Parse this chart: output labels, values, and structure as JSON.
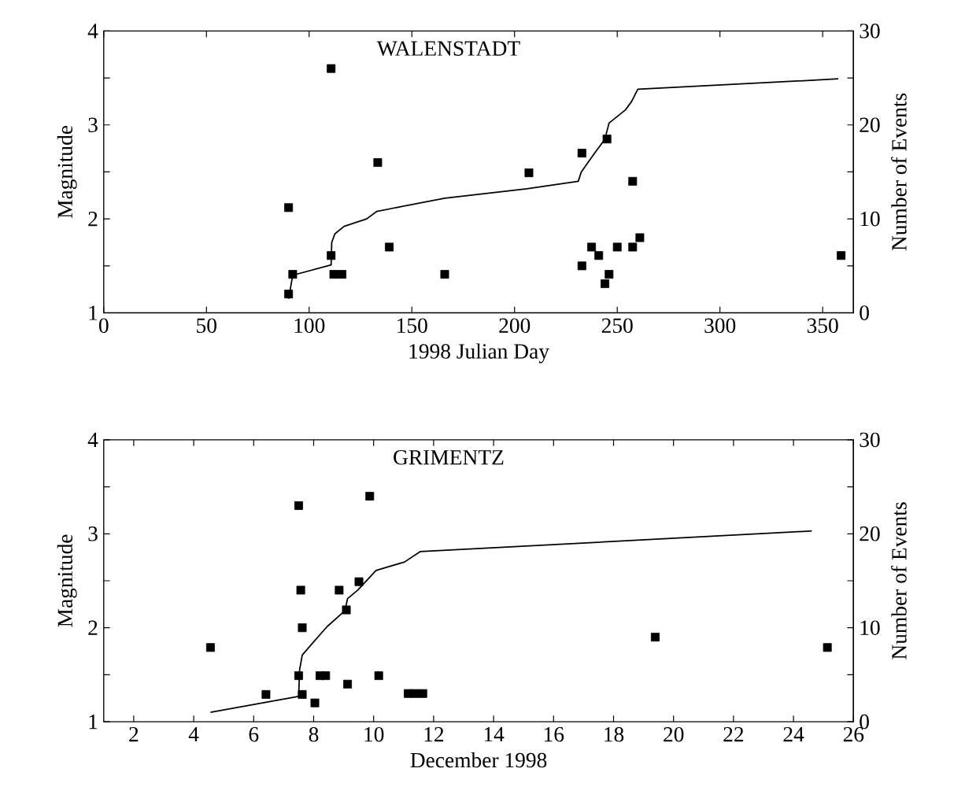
{
  "chart_data": [
    {
      "type": "scatter",
      "title": "WALENSTADT",
      "xlabel": "1998 Julian Day",
      "ylabel": "Magnitude",
      "y2label": "Number of Events",
      "marker": "square",
      "xlim": [
        0,
        365
      ],
      "xticks": [
        0,
        50,
        100,
        150,
        200,
        250,
        300,
        350
      ],
      "ylim": [
        1,
        4
      ],
      "yticks": [
        1,
        {
          "value": 1.5,
          "label": null
        },
        2,
        {
          "value": 2.5,
          "label": null
        },
        3,
        {
          "value": 3.5,
          "label": null
        },
        4
      ],
      "y2lim": [
        0,
        30
      ],
      "y2ticks": [
        0,
        {
          "value": 5,
          "label": null
        },
        10,
        {
          "value": 15,
          "label": null
        },
        20,
        {
          "value": 25,
          "label": null
        },
        30
      ],
      "series": [
        {
          "color": "#000000",
          "x": [
            90,
            92,
            90,
            110.7,
            110.7,
            112,
            116,
            133.4,
            139,
            166,
            207,
            232.8,
            232.8,
            237.5,
            241,
            244,
            245,
            246,
            250,
            257.5,
            257.5,
            261,
            359
          ],
          "values": [
            1.2,
            1.41,
            2.12,
            3.6,
            1.61,
            1.41,
            1.41,
            2.6,
            1.7,
            1.41,
            2.49,
            2.7,
            1.5,
            1.7,
            1.61,
            1.31,
            2.85,
            1.41,
            1.7,
            1.7,
            2.4,
            1.8,
            1.61
          ]
        },
        {
          "type": "line",
          "axis": "y2",
          "color": "#000000",
          "line_style": "solid",
          "marker": "none",
          "x": [
            90,
            92,
            110.7,
            111,
            112.5,
            117,
            128,
            133,
            140,
            166,
            206,
            231,
            232.5,
            239,
            244,
            246,
            254,
            257,
            260,
            357.6
          ],
          "values": [
            1.5,
            4,
            5.1,
            7.5,
            8.4,
            9.2,
            10,
            10.8,
            11.1,
            12.2,
            13.2,
            14,
            15,
            17,
            18.5,
            20.2,
            21.6,
            22.5,
            23.8,
            24.9
          ]
        }
      ]
    },
    {
      "type": "scatter",
      "title": "GRIMENTZ",
      "xlabel": "December 1998",
      "ylabel": "Magnitude",
      "y2label": "Number of Events",
      "marker": "square",
      "xlim": [
        1,
        26
      ],
      "xticks": [
        2,
        4,
        6,
        8,
        10,
        12,
        14,
        16,
        18,
        20,
        22,
        24,
        26
      ],
      "ylim": [
        1,
        4
      ],
      "yticks": [
        1,
        {
          "value": 1.5,
          "label": null
        },
        2,
        {
          "value": 2.5,
          "label": null
        },
        3,
        {
          "value": 3.5,
          "label": null
        },
        4
      ],
      "y2lim": [
        0,
        30
      ],
      "y2ticks": [
        0,
        {
          "value": 5,
          "label": null
        },
        10,
        {
          "value": 15,
          "label": null
        },
        20,
        {
          "value": 25,
          "label": null
        },
        30
      ],
      "series": [
        {
          "color": "#000000",
          "x": [
            4.56,
            6.41,
            7.5,
            7.57,
            7.62,
            7.5,
            7.62,
            8.04,
            8.21,
            8.4,
            8.85,
            9.09,
            9.13,
            9.51,
            9.87,
            10.17,
            11.15,
            11.38,
            11.64,
            19.39,
            25.13
          ],
          "values": [
            1.79,
            1.29,
            3.3,
            2.4,
            2.0,
            1.49,
            1.29,
            1.2,
            1.49,
            1.49,
            2.4,
            2.19,
            1.4,
            2.49,
            3.4,
            1.49,
            1.3,
            1.3,
            1.3,
            1.9,
            1.79
          ]
        },
        {
          "type": "line",
          "axis": "y2",
          "color": "#000000",
          "line_style": "solid",
          "marker": "none",
          "x": [
            4.56,
            7.5,
            7.53,
            7.62,
            7.92,
            8.44,
            9.04,
            9.13,
            9.47,
            10.08,
            11.03,
            11.55,
            24.61
          ],
          "values": [
            1.0,
            2.7,
            5.5,
            7.1,
            8.2,
            10.1,
            11.8,
            13.1,
            14.0,
            16.1,
            17.0,
            18.1,
            20.3
          ]
        }
      ]
    }
  ]
}
